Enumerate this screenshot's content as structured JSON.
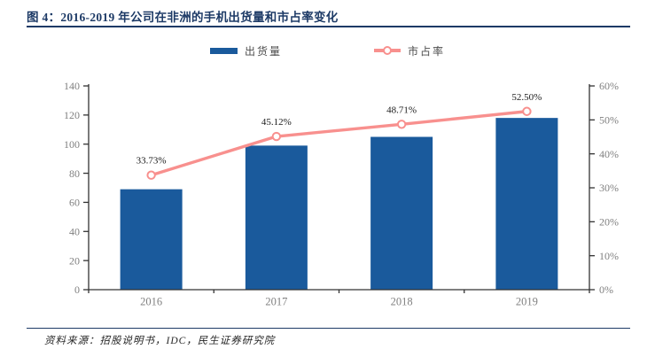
{
  "header": {
    "title": "图 4：2016-2019 年公司在非洲的手机出货量和市占率变化"
  },
  "legend": {
    "shipments": "出货量",
    "share": "市占率"
  },
  "footer": {
    "source": "资料来源：招股说明书，IDC，民生证券研究院"
  },
  "colors": {
    "bar": "#1a5a9c",
    "line": "#f8908e",
    "navy": "#1d3a66",
    "axis_line": "#333333",
    "axis_text": "#808080",
    "label_text": "#1a1a1a"
  },
  "chart_data": {
    "type": "bar",
    "title": "2016-2019 年公司在非洲的手机出货量和市占率变化",
    "categories": [
      "2016",
      "2017",
      "2018",
      "2019"
    ],
    "series": [
      {
        "name": "出货量",
        "type": "bar",
        "axis": "left",
        "values": [
          69,
          99,
          105,
          118
        ]
      },
      {
        "name": "市占率",
        "type": "line",
        "axis": "right",
        "values": [
          33.73,
          45.12,
          48.71,
          52.5
        ],
        "point_labels": [
          "33.73%",
          "45.12%",
          "48.71%",
          "52.50%"
        ]
      }
    ],
    "left_axis": {
      "min": 0,
      "max": 140,
      "step": 20,
      "ticks": [
        "0",
        "20",
        "40",
        "60",
        "80",
        "100",
        "120",
        "140"
      ]
    },
    "right_axis": {
      "min": 0,
      "max": 60,
      "step": 10,
      "ticks": [
        "0%",
        "10%",
        "20%",
        "30%",
        "40%",
        "50%",
        "60%"
      ]
    },
    "legend_position": "top",
    "grid": false
  }
}
